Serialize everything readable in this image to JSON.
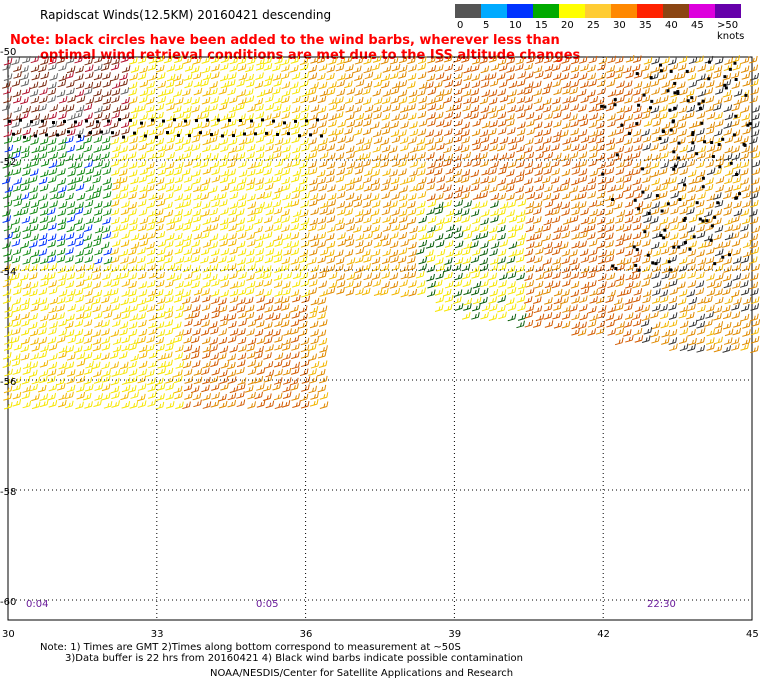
{
  "title": "Rapidscat Winds(12.5KM) 20160421 descending",
  "note_lines": [
    "Note: black circles have been added to the wind barbs, wherever less than",
    "optimal wind retrieval conditions are met due to the ISS altitude changes"
  ],
  "legend": {
    "labels": [
      "0",
      "5",
      "10",
      "15",
      "20",
      "25",
      "30",
      "35",
      "40",
      "45",
      ">50 knots"
    ],
    "colors": [
      "#555555",
      "#00aaff",
      "#0033ff",
      "#00aa00",
      "#ffff00",
      "#ffcc33",
      "#ff8800",
      "#ff2200",
      "#8b4513",
      "#dd00dd",
      "#6600aa"
    ]
  },
  "map": {
    "x_ticks": [
      "30",
      "33",
      "36",
      "39",
      "42",
      "45"
    ],
    "y_ticks": [
      "-50",
      "-52",
      "-54",
      "-56",
      "-58",
      "-60"
    ],
    "times": [
      "0:04",
      "0:05",
      "22:30"
    ]
  },
  "footer": {
    "line1": "Note: 1) Times are GMT 2)Times along bottom correspond to measurement at ~50S",
    "line2": "3)Data buffer is 22 hrs from 20160421 4) Black wind barbs indicate possible contamination",
    "line3": "NOAA/NESDIS/Center for Satellite Applications and Research"
  }
}
